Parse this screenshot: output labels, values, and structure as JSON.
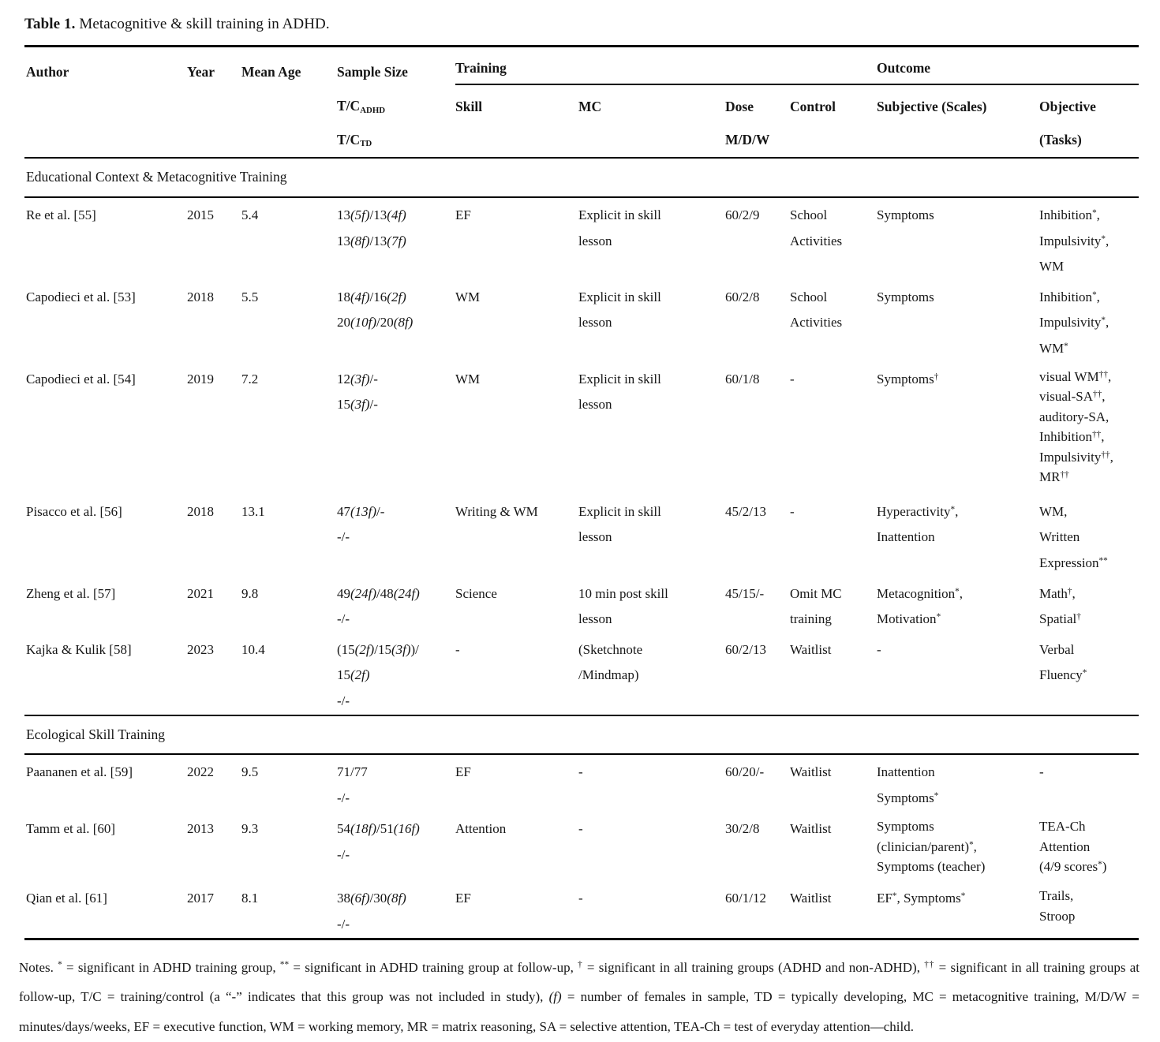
{
  "caption": {
    "label": "Table 1.",
    "text": " Metacognitive & skill training in ADHD."
  },
  "table": {
    "group_headers": {
      "training": "Training",
      "outcome": "Outcome"
    },
    "columns": {
      "author": "Author",
      "year": "Year",
      "mean_age": "Mean Age",
      "sample_size": "Sample Size\nT/C_{ADHD}\nT/C_{TD}",
      "skill": "Skill",
      "mc": "MC",
      "dose": "Dose\nM/D/W",
      "control": "Control",
      "subjective": "Subjective (Scales)",
      "objective": "Objective\n(Tasks)"
    },
    "sections": [
      {
        "label": "Educational Context & Metacognitive Training",
        "rows": [
          {
            "author": "Re et al. [55]",
            "year": "2015",
            "mean_age": "5.4",
            "sample_size": "13~{(5f)}/13~{(4f)}\n13~{(8f)}/13~{(7f)}",
            "skill": "EF",
            "mc": "Explicit in skill\nlesson",
            "dose": "60/2/9",
            "control": "School\nActivities",
            "subjective": "Symptoms",
            "objective": "Inhibition^{*},\nImpulsivity^{*},\nWM"
          },
          {
            "author": "Capodieci et al. [53]",
            "year": "2018",
            "mean_age": "5.5",
            "sample_size": "18~{(4f)}/16~{(2f)}\n20~{(10f)}/20~{(8f)}",
            "skill": "WM",
            "mc": "Explicit in skill\nlesson",
            "dose": "60/2/8",
            "control": "School\nActivities",
            "subjective": "Symptoms",
            "objective": "Inhibition^{*},\nImpulsivity^{*},\nWM^{*}"
          },
          {
            "author": "Capodieci et al. [54]",
            "year": "2019",
            "mean_age": "7.2",
            "sample_size": "12~{(3f)}/-\n15~{(3f)}/-",
            "skill": "WM",
            "mc": "Explicit in skill\nlesson",
            "dose": "60/1/8",
            "control": "-",
            "subjective": "Symptoms^{†}",
            "objective": "visual WM^{††},\nvisual-SA^{††},\nauditory-SA,\nInhibition^{††},\nImpulsivity^{††},\nMR^{††}"
          },
          {
            "author": "Pisacco et al. [56]",
            "year": "2018",
            "mean_age": "13.1",
            "sample_size": "47~{(13f)}/-\n-/-",
            "skill": "Writing & WM",
            "mc": "Explicit in skill\nlesson",
            "dose": "45/2/13",
            "control": "-",
            "subjective": "Hyperactivity^{*},\nInattention",
            "objective": "WM,\nWritten\nExpression^{**}"
          },
          {
            "author": "Zheng et al. [57]",
            "year": "2021",
            "mean_age": "9.8",
            "sample_size": "49~{(24f)}/48~{(24f)}\n-/-",
            "skill": "Science",
            "mc": "10 min post skill\nlesson",
            "dose": "45/15/-",
            "control": "Omit MC\ntraining",
            "subjective": "Metacognition^{*},\nMotivation^{*}",
            "objective": "Math^{†},\nSpatial^{†}"
          },
          {
            "author": "Kajka & Kulik [58]",
            "year": "2023",
            "mean_age": "10.4",
            "sample_size": "(15~{(2f)}/15~{(3f)})/\n15~{(2f)}\n-/-",
            "skill": "-",
            "mc": "(Sketchnote\n/Mindmap)",
            "dose": "60/2/13",
            "control": "Waitlist",
            "subjective": "-",
            "objective": "Verbal\nFluency^{*}"
          }
        ]
      },
      {
        "label": "Ecological Skill Training",
        "rows": [
          {
            "author": "Paananen et al. [59]",
            "year": "2022",
            "mean_age": "9.5",
            "sample_size": "71/77\n-/-",
            "skill": "EF",
            "mc": "-",
            "dose": "60/20/-",
            "control": "Waitlist",
            "subjective": "Inattention\nSymptoms^{*}",
            "objective": "-"
          },
          {
            "author": "Tamm et al. [60]",
            "year": "2013",
            "mean_age": "9.3",
            "sample_size": "54~{(18f)}/51~{(16f)}\n-/-",
            "skill": "Attention",
            "mc": "-",
            "dose": "30/2/8",
            "control": "Waitlist",
            "subjective": "Symptoms\n(clinician/parent)^{*},\nSymptoms (teacher)",
            "objective": "TEA-Ch\nAttention\n(4/9 scores^{*})"
          },
          {
            "author": "Qian et al. [61]",
            "year": "2017",
            "mean_age": "8.1",
            "sample_size": "38~{(6f)}/30~{(8f)}\n-/-",
            "skill": "EF",
            "mc": "-",
            "dose": "60/1/12",
            "control": "Waitlist",
            "subjective": "EF^{*}, Symptoms^{*}",
            "objective": "Trails,\nStroop"
          }
        ]
      }
    ]
  },
  "notes": "Notes. ^{*} = significant in ADHD training group, ^{**} = significant in ADHD training group at follow-up, ^{†} = significant in all training groups (ADHD and non-ADHD), ^{††} = significant in all training groups at follow-up, T/C = training/control (a “-” indicates that this group was not included in study), ~{(f)} = number of females in sample, TD = typically developing, MC = metacognitive training, M/D/W = minutes/days/weeks, EF = executive function, WM = working memory, MR = matrix reasoning, SA = selective attention, TEA-Ch = test of everyday attention—child."
}
